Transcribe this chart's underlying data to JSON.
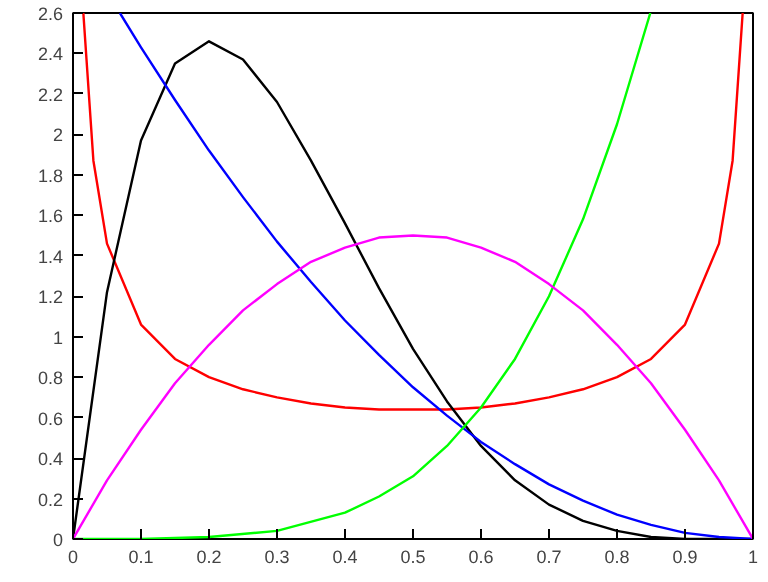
{
  "chart_data": {
    "type": "line",
    "xlim": [
      0,
      1
    ],
    "ylim": [
      0,
      2.6
    ],
    "xticks": [
      0,
      0.1,
      0.2,
      0.3,
      0.4,
      0.5,
      0.6,
      0.7,
      0.8,
      0.9,
      1
    ],
    "yticks": [
      0,
      0.2,
      0.4,
      0.6,
      0.8,
      1,
      1.2,
      1.4,
      1.6,
      1.8,
      2,
      2.2,
      2.4,
      2.6
    ],
    "grid": false,
    "marker": "none",
    "line_style": "solid",
    "series": [
      {
        "color": "#ff0000",
        "x": [
          0.0152,
          0.03,
          0.05,
          0.1,
          0.15,
          0.2,
          0.25,
          0.3,
          0.35,
          0.4,
          0.45,
          0.5,
          0.55,
          0.6,
          0.65,
          0.7,
          0.75,
          0.8,
          0.85,
          0.9,
          0.95,
          0.97,
          0.9848
        ],
        "values": [
          2.6,
          1.87,
          1.46,
          1.06,
          0.89,
          0.8,
          0.74,
          0.7,
          0.67,
          0.65,
          0.64,
          0.64,
          0.64,
          0.65,
          0.67,
          0.7,
          0.74,
          0.8,
          0.89,
          1.06,
          1.46,
          1.87,
          2.6
        ]
      },
      {
        "color": "#000000",
        "x": [
          0,
          0.05,
          0.1,
          0.15,
          0.2,
          0.25,
          0.3,
          0.35,
          0.4,
          0.45,
          0.5,
          0.55,
          0.6,
          0.65,
          0.7,
          0.75,
          0.8,
          0.85,
          0.9,
          0.95,
          1
        ],
        "values": [
          0,
          1.22,
          1.97,
          2.35,
          2.46,
          2.37,
          2.16,
          1.87,
          1.56,
          1.24,
          0.94,
          0.68,
          0.46,
          0.29,
          0.17,
          0.09,
          0.04,
          0.01,
          0,
          0,
          0
        ]
      },
      {
        "color": "#0000ff",
        "x": [
          0.069,
          0.1,
          0.15,
          0.2,
          0.25,
          0.3,
          0.35,
          0.4,
          0.45,
          0.5,
          0.55,
          0.6,
          0.65,
          0.7,
          0.75,
          0.8,
          0.85,
          0.9,
          0.95,
          1
        ],
        "values": [
          2.6,
          2.43,
          2.17,
          1.92,
          1.69,
          1.47,
          1.27,
          1.08,
          0.91,
          0.75,
          0.61,
          0.48,
          0.37,
          0.27,
          0.19,
          0.12,
          0.07,
          0.03,
          0.01,
          0
        ]
      },
      {
        "color": "#00ff00",
        "x": [
          0,
          0.1,
          0.2,
          0.3,
          0.4,
          0.45,
          0.5,
          0.55,
          0.6,
          0.65,
          0.7,
          0.75,
          0.8,
          0.849
        ],
        "values": [
          0,
          0,
          0.01,
          0.04,
          0.13,
          0.21,
          0.31,
          0.46,
          0.65,
          0.89,
          1.2,
          1.58,
          2.05,
          2.6
        ]
      },
      {
        "color": "#ff00ff",
        "x": [
          0,
          0.05,
          0.1,
          0.15,
          0.2,
          0.25,
          0.3,
          0.35,
          0.4,
          0.45,
          0.5,
          0.55,
          0.6,
          0.65,
          0.7,
          0.75,
          0.8,
          0.85,
          0.9,
          0.95,
          1
        ],
        "values": [
          0,
          0.29,
          0.54,
          0.77,
          0.96,
          1.13,
          1.26,
          1.37,
          1.44,
          1.49,
          1.5,
          1.49,
          1.44,
          1.37,
          1.26,
          1.13,
          0.96,
          0.77,
          0.54,
          0.29,
          0
        ]
      }
    ]
  }
}
